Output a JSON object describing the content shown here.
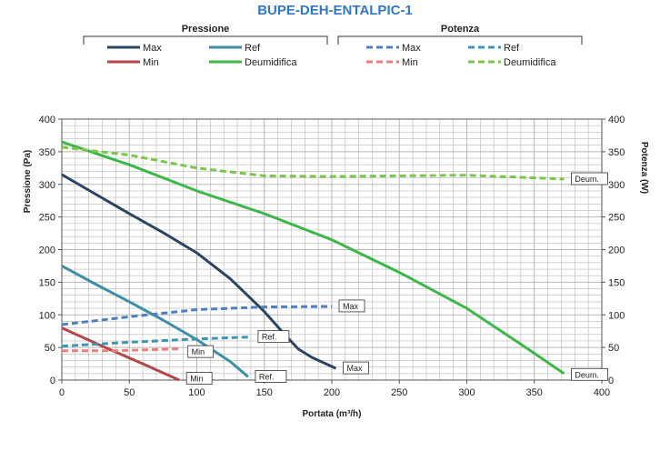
{
  "chart_data": {
    "type": "line",
    "title": "BUPE-DEH-ENTALPIC-1",
    "xlabel": "Portata (m³/h)",
    "ylabel": "Pressione (Pa)",
    "y2label": "Potenza (W)",
    "xlim": [
      0,
      400
    ],
    "ylim": [
      0,
      400
    ],
    "y2lim": [
      0,
      400
    ],
    "xticks": [
      "0",
      "50",
      "100",
      "150",
      "200",
      "250",
      "300",
      "350",
      "400"
    ],
    "yticks": [
      "0",
      "50",
      "100",
      "150",
      "200",
      "250",
      "300",
      "350",
      "400"
    ],
    "y2ticks": [
      "0",
      "50",
      "100",
      "150",
      "200",
      "250",
      "300",
      "350",
      "400"
    ],
    "grid": true,
    "legend_groups": [
      {
        "title": "Pressione",
        "entries": [
          "Max",
          "Ref",
          "Min",
          "Deumidifica"
        ]
      },
      {
        "title": "Potenza",
        "entries": [
          "Max",
          "Ref",
          "Min",
          "Deumidifica"
        ]
      }
    ],
    "colors": {
      "max": "#2a4563",
      "ref": "#3e8ea5",
      "min": "#b5474a",
      "deumidifica": "#3fb64a",
      "max_power": "#4f7fc0",
      "ref_power": "#3f95b4",
      "min_power": "#ee7f7f",
      "deumidifica_power": "#7cc64a",
      "title": "#2f78c4",
      "grid": "#b8b8b8"
    },
    "series": [
      {
        "name": "Max",
        "group": "Pressione",
        "axis": "left",
        "style": "solid",
        "x": [
          0,
          25,
          50,
          75,
          100,
          125,
          150,
          165,
          175,
          185,
          203
        ],
        "y": [
          315,
          285,
          255,
          226,
          195,
          155,
          105,
          70,
          48,
          35,
          18
        ]
      },
      {
        "name": "Ref",
        "group": "Pressione",
        "axis": "left",
        "style": "solid",
        "x": [
          0,
          25,
          50,
          75,
          100,
          125,
          138
        ],
        "y": [
          175,
          147,
          120,
          92,
          62,
          28,
          5
        ]
      },
      {
        "name": "Min",
        "group": "Pressione",
        "axis": "left",
        "style": "solid",
        "x": [
          0,
          30,
          60,
          87
        ],
        "y": [
          80,
          52,
          25,
          0
        ]
      },
      {
        "name": "Deumidifica",
        "group": "Pressione",
        "axis": "left",
        "style": "solid",
        "x": [
          0,
          50,
          100,
          150,
          200,
          250,
          300,
          340,
          372
        ],
        "y": [
          365,
          330,
          290,
          255,
          215,
          165,
          110,
          55,
          10
        ]
      },
      {
        "name": "Max",
        "group": "Potenza",
        "axis": "right",
        "style": "dashed",
        "x": [
          0,
          50,
          100,
          150,
          200
        ],
        "y": [
          85,
          97,
          108,
          112,
          113
        ]
      },
      {
        "name": "Ref",
        "group": "Potenza",
        "axis": "right",
        "style": "dashed",
        "x": [
          0,
          50,
          100,
          140
        ],
        "y": [
          52,
          58,
          63,
          66
        ]
      },
      {
        "name": "Min",
        "group": "Potenza",
        "axis": "right",
        "style": "dashed",
        "x": [
          0,
          40,
          88
        ],
        "y": [
          45,
          45,
          48
        ]
      },
      {
        "name": "Deumidifica",
        "group": "Potenza",
        "axis": "right",
        "style": "dashed",
        "x": [
          0,
          50,
          100,
          150,
          200,
          250,
          300,
          350,
          372
        ],
        "y": [
          357,
          345,
          325,
          313,
          312,
          313,
          314,
          310,
          308
        ]
      }
    ],
    "annotations": [
      {
        "text": "Max",
        "x": 203,
        "y": 18
      },
      {
        "text": "Ref.",
        "x": 138,
        "y": 5
      },
      {
        "text": "Min",
        "x": 87,
        "y": 2
      },
      {
        "text": "Deum.",
        "x": 372,
        "y": 8
      },
      {
        "text": "Max",
        "x": 200,
        "y": 113
      },
      {
        "text": "Ref.",
        "x": 140,
        "y": 66
      },
      {
        "text": "Min",
        "x": 88,
        "y": 43
      },
      {
        "text": "Deum.",
        "x": 372,
        "y": 308
      }
    ]
  }
}
